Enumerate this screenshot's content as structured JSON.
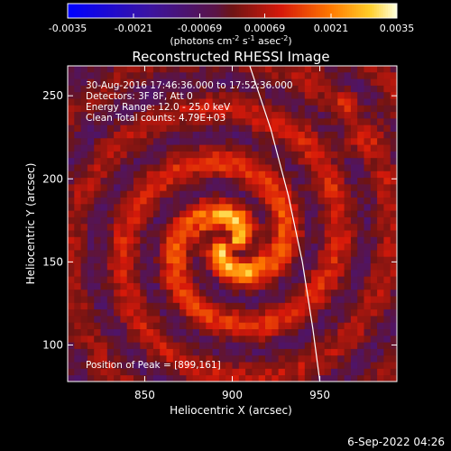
{
  "chart_data": {
    "type": "heatmap",
    "title": "Reconstructed RHESSI Image",
    "xlabel": "Heliocentric X (arcsec)",
    "ylabel": "Heliocentric Y (arcsec)",
    "xlim": [
      806,
      994
    ],
    "ylim": [
      78,
      268
    ],
    "xticks": [
      850,
      900,
      950
    ],
    "yticks": [
      100,
      150,
      200,
      250
    ],
    "colorbar": {
      "ticks": [
        "-0.0035",
        "-0.0021",
        "-0.00069",
        "0.00069",
        "0.0021",
        "0.0035"
      ],
      "range": [
        -0.0035,
        0.0035
      ],
      "unit_main": "(photons cm",
      "unit_sup1": "-2",
      "unit_mid1": " s",
      "unit_sup2": "-1",
      "unit_mid2": " asec",
      "unit_sup3": "-2",
      "unit_end": ")"
    },
    "annotations": {
      "time": "30-Aug-2016 17:46:36.000 to 17:52:36.000",
      "detectors": "Detectors: 3F 8F, Att 0",
      "energy": "Energy Range: 12.0 - 25.0 keV",
      "clean": "Clean     Total counts: 4.79E+03",
      "peak": "Position of Peak = [899,161]"
    },
    "peak": {
      "x": 899,
      "y": 161
    },
    "limb_curve": [
      [
        910,
        268
      ],
      [
        922,
        230
      ],
      [
        932,
        190
      ],
      [
        940,
        150
      ],
      [
        946,
        110
      ],
      [
        950,
        78
      ]
    ]
  },
  "footer": {
    "date": "6-Sep-2022 04:26"
  }
}
